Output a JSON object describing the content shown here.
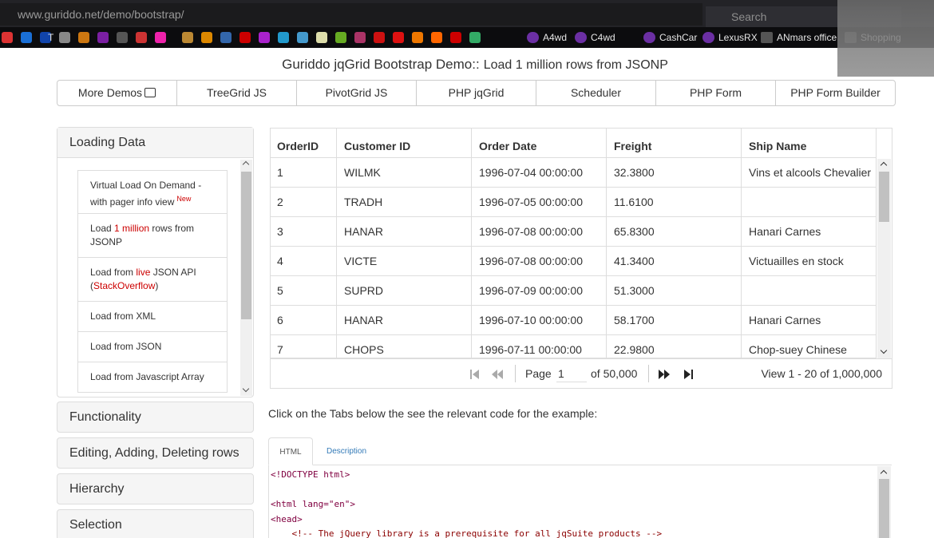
{
  "browser": {
    "url": "www.guriddo.net/demo/bootstrap/",
    "search": "Search",
    "bookmarks": [
      "T",
      "A4wd",
      "C4wd",
      "CashCar",
      "LexusRX",
      "ANmars office",
      "Shopping"
    ]
  },
  "header": {
    "title": "Guriddo jqGrid Bootstrap Demo::",
    "subtitle": "Load 1 million rows from JSONP"
  },
  "nav": [
    "More Demos",
    "TreeGrid JS",
    "PivotGrid JS",
    "PHP jqGrid",
    "Scheduler",
    "PHP Form",
    "PHP Form Builder"
  ],
  "sidebar": {
    "active": {
      "title": "Loading Data",
      "items": [
        {
          "parts": [
            "Virtual Load On Demand - with pager info view"
          ],
          "badge": "New"
        },
        {
          "parts": [
            "Load ",
            "1 million",
            " rows from JSONP"
          ]
        },
        {
          "parts": [
            "Load from ",
            "live",
            " JSON API (",
            "StackOverflow",
            ")"
          ]
        },
        {
          "parts": [
            "Load from XML"
          ]
        },
        {
          "parts": [
            "Load from JSON"
          ]
        },
        {
          "parts": [
            "Load from Javascript Array"
          ]
        }
      ]
    },
    "sections": [
      "Functionality",
      "Editing, Adding, Deleting rows",
      "Hierarchy",
      "Selection"
    ]
  },
  "grid": {
    "columns": [
      "OrderID",
      "Customer ID",
      "Order Date",
      "Freight",
      "Ship Name"
    ],
    "rows": [
      [
        "1",
        "WILMK",
        "1996-07-04 00:00:00",
        "32.3800",
        "Vins et alcools Chevalier"
      ],
      [
        "2",
        "TRADH",
        "1996-07-05 00:00:00",
        "11.6100",
        null
      ],
      [
        "3",
        "HANAR",
        "1996-07-08 00:00:00",
        "65.8300",
        "Hanari Carnes"
      ],
      [
        "4",
        "VICTE",
        "1996-07-08 00:00:00",
        "41.3400",
        "Victuailles en stock"
      ],
      [
        "5",
        "SUPRD",
        "1996-07-09 00:00:00",
        "51.3000",
        null
      ],
      [
        "6",
        "HANAR",
        "1996-07-10 00:00:00",
        "58.1700",
        "Hanari Carnes"
      ],
      [
        "7",
        "CHOPS",
        "1996-07-11 00:00:00",
        "22.9800",
        "Chop-suey Chinese"
      ]
    ],
    "pager": {
      "page_label": "Page",
      "page": "1",
      "of": "of 50,000",
      "view": "View 1 - 20 of 1,000,000"
    }
  },
  "instructions": "Click on the Tabs below the see the relevant code for the example:",
  "tabs": [
    "HTML",
    "Description"
  ],
  "code": [
    "<!DOCTYPE html>",
    null,
    "<html lang=\"en\">",
    "<head>",
    "    <!-- The jQuery library is a prerequisite for all jqSuite products -->"
  ]
}
